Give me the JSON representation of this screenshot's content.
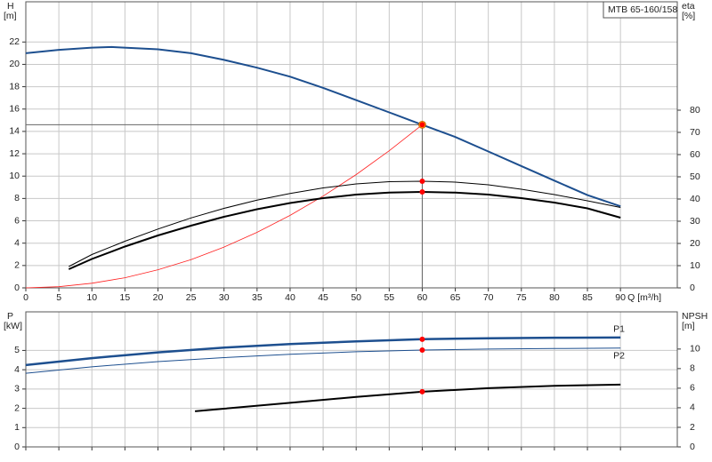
{
  "chart_data": [
    {
      "type": "line",
      "title": "MTB 65-160/158",
      "ylabel": "H",
      "yunit": "[m]",
      "y2label": "eta",
      "y2unit": "[%]",
      "xlabel": "Q [m³/h]",
      "xlim": [
        0,
        98.6
      ],
      "xticks": [
        0,
        5,
        10,
        15,
        20,
        25,
        30,
        35,
        40,
        45,
        50,
        55,
        60,
        65,
        70,
        75,
        80,
        85,
        90
      ],
      "ylim": [
        0,
        25.6
      ],
      "yticks": [
        0,
        2,
        4,
        6,
        8,
        10,
        12,
        14,
        16,
        18,
        20,
        22
      ],
      "y2lim": [
        0,
        128.8
      ],
      "y2ticks": [
        0,
        10,
        20,
        30,
        40,
        50,
        60,
        70,
        80
      ],
      "grid": true,
      "operating_q": 60,
      "marker_color": "#ff0000",
      "series": [
        {
          "color": "#1d4f8f",
          "width": 2,
          "marker_color": "#ffb000",
          "crosshair": true,
          "x": [
            0,
            5,
            10,
            13,
            20,
            25,
            30,
            35,
            40,
            45,
            50,
            55,
            60,
            65,
            70,
            75,
            80,
            85,
            90
          ],
          "values": [
            21.0,
            21.3,
            21.5,
            21.55,
            21.35,
            21.0,
            20.4,
            19.7,
            18.9,
            17.9,
            16.8,
            15.7,
            14.6,
            13.5,
            12.2,
            10.9,
            9.6,
            8.3,
            7.3
          ]
        },
        {
          "color": "#ff2020",
          "width": 0.8,
          "x": [
            0,
            5,
            10,
            15,
            20,
            25,
            30,
            35,
            40,
            45,
            50,
            55,
            60
          ],
          "values": [
            0,
            0.1,
            0.41,
            0.91,
            1.62,
            2.53,
            3.65,
            4.97,
            6.49,
            8.21,
            10.14,
            12.27,
            14.6
          ]
        },
        {
          "color": "#000000",
          "width": 1,
          "axis": "y2",
          "x": [
            6.5,
            10,
            15,
            20,
            25,
            30,
            35,
            40,
            45,
            50,
            55,
            60,
            65,
            70,
            75,
            80,
            85,
            90
          ],
          "values": [
            9.6,
            15,
            21,
            26.5,
            31.5,
            35.8,
            39.5,
            42.5,
            45,
            46.8,
            47.8,
            48,
            47.6,
            46.4,
            44.4,
            42,
            39.2,
            36.2
          ]
        },
        {
          "color": "#000000",
          "width": 2,
          "axis": "y2",
          "x": [
            6.5,
            10,
            15,
            20,
            25,
            30,
            35,
            40,
            45,
            50,
            55,
            60,
            65,
            70,
            75,
            80,
            85,
            90
          ],
          "values": [
            8.4,
            13,
            18.6,
            23.6,
            28,
            32,
            35.4,
            38.2,
            40.4,
            42,
            42.9,
            43.2,
            42.9,
            42,
            40.4,
            38.4,
            35.8,
            31.6
          ]
        }
      ]
    },
    {
      "type": "line",
      "ylabel": "P",
      "yunit": "[kW]",
      "y2label": "NPSH",
      "y2unit": "[m]",
      "xlim": [
        0,
        98.6
      ],
      "ylim": [
        0,
        7
      ],
      "yticks": [
        0,
        1,
        2,
        3,
        4,
        5
      ],
      "y2lim": [
        0,
        13.8
      ],
      "y2ticks": [
        0,
        2,
        4,
        6,
        8,
        10
      ],
      "grid": true,
      "operating_q": 60,
      "marker_color": "#ff0000",
      "series": [
        {
          "name": "P1",
          "color": "#1d4f8f",
          "width": 2.5,
          "x": [
            0,
            10,
            20,
            30,
            40,
            50,
            60,
            70,
            80,
            90
          ],
          "values": [
            4.24,
            4.6,
            4.9,
            5.15,
            5.33,
            5.47,
            5.58,
            5.63,
            5.66,
            5.67
          ]
        },
        {
          "name": "P2",
          "color": "#1d4f8f",
          "width": 1,
          "x": [
            0,
            10,
            20,
            30,
            40,
            50,
            60,
            70,
            80,
            90
          ],
          "values": [
            3.82,
            4.15,
            4.42,
            4.63,
            4.8,
            4.93,
            5.02,
            5.07,
            5.1,
            5.12
          ]
        },
        {
          "color": "#000000",
          "width": 2,
          "axis": "y2",
          "x": [
            25.6,
            30,
            40,
            50,
            60,
            70,
            80,
            90
          ],
          "values": [
            3.64,
            3.9,
            4.5,
            5.1,
            5.64,
            6.0,
            6.25,
            6.36
          ]
        }
      ]
    }
  ]
}
